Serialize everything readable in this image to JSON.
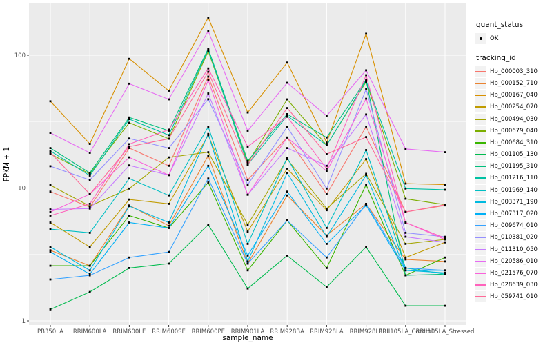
{
  "legend": {
    "quant_status_title": "quant_status",
    "quant_status_items": [
      "OK"
    ],
    "tracking_id_title": "tracking_id"
  },
  "chart_data": {
    "type": "line",
    "title": "",
    "xlabel": "sample_name",
    "ylabel": "FPKM + 1",
    "y_scale": "log10",
    "y_ticks": [
      1,
      10,
      100
    ],
    "y_minor_ticks": [
      3.162,
      31.623
    ],
    "ylim": [
      0.93,
      243
    ],
    "grid": true,
    "legend_position": "right",
    "panel_bg": "#EBEBEB",
    "gridline_color": "#FFFFFF",
    "tick_label_color": "#4D4D4D",
    "point_color": "#000000",
    "categories": [
      "PB350LA",
      "RRIM600LA",
      "RRIM600LE",
      "RRIM600SE",
      "RRIM600PE",
      "RRIM901LA",
      "RRIM928BA",
      "RRIM928LA",
      "RRIM928LE",
      "RRII105LA_Control",
      "RRII105LA_Stressed"
    ],
    "series": [
      {
        "name": "Hb_000003_310",
        "color": "#F8766D",
        "values": [
          9.4,
          7.2,
          20,
          14.7,
          69,
          11.5,
          24,
          9.0,
          29,
          6.6,
          7.4
        ]
      },
      {
        "name": "Hb_000152_710",
        "color": "#EA8331",
        "values": [
          3.4,
          2.6,
          7.4,
          5.2,
          17.5,
          2.7,
          8.8,
          4.4,
          7.6,
          2.9,
          2.8
        ]
      },
      {
        "name": "Hb_000167_040",
        "color": "#D89000",
        "values": [
          45,
          21.5,
          94,
          54,
          192,
          37,
          88,
          22,
          145,
          10.8,
          10.6
        ]
      },
      {
        "name": "Hb_000254_070",
        "color": "#C09B00",
        "values": [
          5.5,
          3.6,
          8.2,
          7.6,
          25,
          4.7,
          14,
          6.8,
          16.5,
          3.0,
          3.9
        ]
      },
      {
        "name": "Hb_000494_030",
        "color": "#A3A500",
        "values": [
          10.5,
          7.3,
          9.9,
          17,
          18.6,
          5.3,
          16.5,
          7.0,
          12.8,
          3.8,
          4.1
        ]
      },
      {
        "name": "Hb_000679_040",
        "color": "#7CAE00",
        "values": [
          18,
          12.8,
          31,
          23.5,
          107,
          15.5,
          46.5,
          21,
          63,
          8.3,
          7.5
        ]
      },
      {
        "name": "Hb_000684_310",
        "color": "#39B600",
        "values": [
          2.6,
          2.6,
          6.2,
          5.0,
          11.0,
          2.4,
          5.7,
          2.5,
          10.6,
          2.2,
          3.0
        ]
      },
      {
        "name": "Hb_001105_130",
        "color": "#00BB4E",
        "values": [
          1.22,
          1.65,
          2.5,
          2.7,
          5.3,
          1.75,
          3.1,
          1.8,
          3.6,
          1.3,
          1.3
        ]
      },
      {
        "name": "Hb_001195_310",
        "color": "#00BF7D",
        "values": [
          20,
          13,
          34,
          27,
          112,
          16,
          36,
          24,
          65,
          2.2,
          2.25
        ]
      },
      {
        "name": "Hb_001216_110",
        "color": "#00C1A3",
        "values": [
          19,
          12.4,
          33,
          25,
          110,
          15,
          35,
          21,
          64,
          9.9,
          9.7
        ]
      },
      {
        "name": "Hb_001969_140",
        "color": "#00BFC4",
        "values": [
          4.9,
          4.6,
          11.8,
          8.8,
          28.9,
          3.8,
          16.9,
          5.0,
          19.3,
          2.5,
          2.25
        ]
      },
      {
        "name": "Hb_003371_190",
        "color": "#00BAE0",
        "values": [
          3.6,
          2.4,
          7.3,
          5.5,
          25.5,
          2.8,
          13,
          4.3,
          12.5,
          2.4,
          2.3
        ]
      },
      {
        "name": "Hb_007317_020",
        "color": "#00B0F6",
        "values": [
          3.3,
          2.25,
          5.5,
          5.0,
          14.7,
          3.1,
          9.4,
          3.8,
          7.4,
          2.4,
          2.4
        ]
      },
      {
        "name": "Hb_009674_010",
        "color": "#35A2FF",
        "values": [
          2.05,
          2.2,
          3.0,
          3.3,
          11.8,
          2.7,
          5.7,
          3.0,
          7.6,
          2.5,
          2.4
        ]
      },
      {
        "name": "Hb_010381_020",
        "color": "#9590FF",
        "values": [
          14.6,
          11.5,
          23.6,
          20,
          46.6,
          10.6,
          28.9,
          9.9,
          55.5,
          4.6,
          4.3
        ]
      },
      {
        "name": "Hb_011310_050",
        "color": "#C77CFF",
        "values": [
          6.9,
          7.0,
          14.8,
          12.5,
          51.5,
          8.9,
          20,
          14.7,
          35.8,
          4.3,
          3.9
        ]
      },
      {
        "name": "Hb_020586_010",
        "color": "#E76BF3",
        "values": [
          26,
          18.4,
          61,
          46.5,
          152,
          27,
          62,
          35,
          77,
          19.7,
          18.6
        ]
      },
      {
        "name": "Hb_021576_070",
        "color": "#FA62DB",
        "values": [
          6.6,
          9.0,
          17,
          12.5,
          64.8,
          8.9,
          24,
          13.4,
          47,
          5.5,
          4.1
        ]
      },
      {
        "name": "Hb_028639_030",
        "color": "#FF62BC",
        "values": [
          6.2,
          7.6,
          21.4,
          27.5,
          79.5,
          20.5,
          34.4,
          14,
          70.7,
          5.5,
          4.2
        ]
      },
      {
        "name": "Hb_059741_010",
        "color": "#FF6A98",
        "values": [
          18.5,
          9.0,
          20.5,
          23.5,
          75,
          15,
          40,
          18,
          24.2,
          6.6,
          7.5
        ]
      }
    ]
  }
}
